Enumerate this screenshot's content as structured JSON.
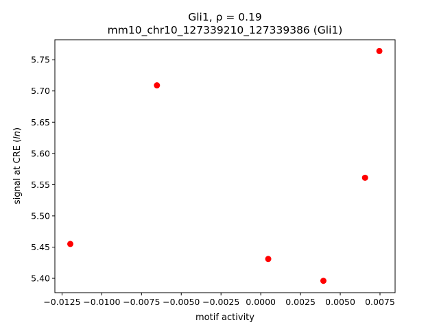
{
  "chart_data": {
    "type": "scatter",
    "title_line1": "Gli1, ρ = 0.19",
    "title_line2": "mm10_chr10_127339210_127339386 (Gli1)",
    "xlabel": "motif activity",
    "ylabel_prefix": "signal at CRE (",
    "ylabel_italic": "ln",
    "ylabel_suffix": ")",
    "xlim": [
      -0.01295,
      0.00845
    ],
    "ylim": [
      5.377,
      5.782
    ],
    "x_ticks": [
      -0.0125,
      -0.01,
      -0.0075,
      -0.005,
      -0.0025,
      0.0,
      0.0025,
      0.005,
      0.0075
    ],
    "x_tick_labels": [
      "−0.0125",
      "−0.0100",
      "−0.0075",
      "−0.0050",
      "−0.0025",
      "0.0000",
      "0.0025",
      "0.0050",
      "0.0075"
    ],
    "y_ticks": [
      5.4,
      5.45,
      5.5,
      5.55,
      5.6,
      5.65,
      5.7,
      5.75
    ],
    "y_tick_labels": [
      "5.40",
      "5.45",
      "5.50",
      "5.55",
      "5.60",
      "5.65",
      "5.70",
      "5.75"
    ],
    "marker_color": "#ff0000",
    "grid": false,
    "points": [
      {
        "x": -0.01198,
        "y": 5.455
      },
      {
        "x": -0.00653,
        "y": 5.709
      },
      {
        "x": 0.00047,
        "y": 5.431
      },
      {
        "x": 0.00394,
        "y": 5.396
      },
      {
        "x": 0.00656,
        "y": 5.561
      },
      {
        "x": 0.00746,
        "y": 5.764
      }
    ]
  }
}
